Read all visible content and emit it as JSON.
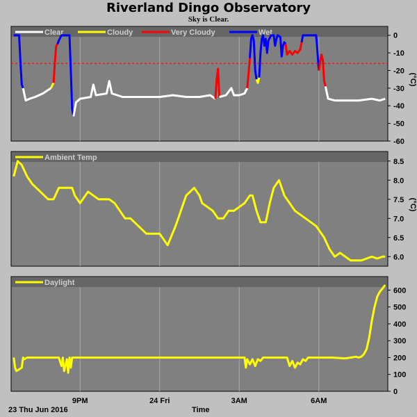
{
  "header": {
    "title": "Riverland Dingo Observatory",
    "subtitle": "Sky is Clear."
  },
  "colors": {
    "background": "#c0c0c0",
    "plot": "#808080",
    "grid": "#a8a8a8",
    "clear": "#ffffff",
    "cloudy": "#ffff00",
    "very_cloudy": "#ff0000",
    "wet": "#0000ff",
    "threshold": "#ff0000",
    "ambient": "#ffff00",
    "daylight": "#ffff00"
  },
  "x_axis": {
    "label": "Time",
    "date_label": "23 Thu Jun 2016",
    "tick_labels": [
      "9PM",
      "24 Fri",
      "3AM",
      "6AM"
    ]
  },
  "chart_data": [
    {
      "type": "line",
      "name": "sky",
      "legend": [
        "Clear",
        "Cloudy",
        "Very Cloudy",
        "Wet"
      ],
      "y_unit": "(°C)",
      "ylim": [
        -60,
        5
      ],
      "y_ticks": [
        0,
        -10,
        -20,
        -30,
        -40,
        -50,
        -60
      ],
      "threshold": -16,
      "xlim": [
        18.4,
        32.6
      ],
      "x_ticks": [
        21,
        24,
        27,
        30
      ],
      "segments": [
        {
          "state": "wet",
          "points": [
            [
              18.5,
              0
            ],
            [
              18.7,
              0
            ],
            [
              18.75,
              -15
            ],
            [
              18.8,
              -28
            ],
            [
              18.85,
              -30
            ]
          ]
        },
        {
          "state": "clear",
          "points": [
            [
              18.85,
              -30
            ],
            [
              18.95,
              -37
            ],
            [
              19.1,
              -36
            ],
            [
              19.3,
              -35
            ],
            [
              19.6,
              -33
            ],
            [
              19.8,
              -31
            ],
            [
              19.9,
              -30
            ]
          ]
        },
        {
          "state": "cloudy",
          "points": [
            [
              19.9,
              -30
            ],
            [
              20.0,
              -27
            ]
          ]
        },
        {
          "state": "very_cloudy",
          "points": [
            [
              20.0,
              -27
            ],
            [
              20.05,
              -15
            ],
            [
              20.1,
              -6
            ],
            [
              20.15,
              -5
            ]
          ]
        },
        {
          "state": "wet",
          "points": [
            [
              20.15,
              -5
            ],
            [
              20.2,
              -3
            ],
            [
              20.3,
              0
            ],
            [
              20.6,
              0
            ],
            [
              20.65,
              -20
            ],
            [
              20.7,
              -42
            ],
            [
              20.75,
              -46
            ]
          ]
        },
        {
          "state": "clear",
          "points": [
            [
              20.75,
              -46
            ],
            [
              20.85,
              -38
            ],
            [
              21.0,
              -36
            ],
            [
              21.4,
              -35
            ],
            [
              21.5,
              -28
            ],
            [
              21.6,
              -34
            ],
            [
              22.0,
              -33
            ],
            [
              22.1,
              -26
            ],
            [
              22.2,
              -33
            ],
            [
              22.6,
              -35
            ],
            [
              23.2,
              -35
            ],
            [
              24.0,
              -35
            ],
            [
              24.5,
              -34
            ],
            [
              25.0,
              -35
            ],
            [
              25.5,
              -35
            ],
            [
              25.9,
              -34
            ],
            [
              26.1,
              -36
            ]
          ]
        },
        {
          "state": "very_cloudy",
          "points": [
            [
              26.1,
              -36
            ],
            [
              26.15,
              -25
            ],
            [
              26.2,
              -19
            ],
            [
              26.25,
              -35
            ]
          ]
        },
        {
          "state": "clear",
          "points": [
            [
              26.25,
              -35
            ],
            [
              26.5,
              -34
            ],
            [
              26.7,
              -30
            ],
            [
              26.8,
              -34
            ],
            [
              27.0,
              -34
            ],
            [
              27.2,
              -33
            ],
            [
              27.3,
              -30
            ]
          ]
        },
        {
          "state": "very_cloudy",
          "points": [
            [
              27.3,
              -30
            ],
            [
              27.35,
              -22
            ],
            [
              27.4,
              -13
            ]
          ]
        },
        {
          "state": "wet",
          "points": [
            [
              27.4,
              -13
            ],
            [
              27.45,
              -2
            ],
            [
              27.5,
              0
            ],
            [
              27.55,
              -3
            ],
            [
              27.6,
              -20
            ],
            [
              27.65,
              -25
            ]
          ]
        },
        {
          "state": "cloudy",
          "points": [
            [
              27.65,
              -25
            ],
            [
              27.7,
              -27
            ],
            [
              27.75,
              -24
            ]
          ]
        },
        {
          "state": "wet",
          "points": [
            [
              27.75,
              -24
            ],
            [
              27.8,
              -10
            ],
            [
              27.85,
              -2
            ],
            [
              27.9,
              0
            ],
            [
              27.95,
              -6
            ],
            [
              28.0,
              -2
            ],
            [
              28.05,
              -10
            ],
            [
              28.1,
              -3
            ],
            [
              28.2,
              0
            ],
            [
              28.3,
              0
            ],
            [
              28.35,
              -6
            ],
            [
              28.4,
              -2
            ],
            [
              28.45,
              0
            ],
            [
              28.55,
              -1
            ],
            [
              28.6,
              -12
            ],
            [
              28.65,
              -6
            ],
            [
              28.7,
              -4
            ],
            [
              28.75,
              -5
            ]
          ]
        },
        {
          "state": "very_cloudy",
          "points": [
            [
              28.75,
              -5
            ],
            [
              28.8,
              -11
            ],
            [
              28.9,
              -9
            ],
            [
              29.0,
              -11
            ],
            [
              29.1,
              -9
            ],
            [
              29.2,
              -10
            ],
            [
              29.3,
              -8
            ],
            [
              29.35,
              -4
            ]
          ]
        },
        {
          "state": "wet",
          "points": [
            [
              29.35,
              -4
            ],
            [
              29.4,
              0
            ],
            [
              29.9,
              0
            ],
            [
              29.95,
              -10
            ],
            [
              30.0,
              -20
            ]
          ]
        },
        {
          "state": "very_cloudy",
          "points": [
            [
              30.0,
              -20
            ],
            [
              30.05,
              -15
            ],
            [
              30.1,
              -11
            ],
            [
              30.15,
              -14
            ],
            [
              30.2,
              -26
            ],
            [
              30.25,
              -29
            ]
          ]
        },
        {
          "state": "clear",
          "points": [
            [
              30.25,
              -29
            ],
            [
              30.35,
              -36
            ],
            [
              30.6,
              -37
            ],
            [
              31.0,
              -37
            ],
            [
              31.5,
              -37
            ],
            [
              32.0,
              -36
            ],
            [
              32.3,
              -37
            ],
            [
              32.5,
              -36
            ]
          ]
        }
      ]
    },
    {
      "type": "line",
      "name": "ambient",
      "legend": [
        "Ambient Temp"
      ],
      "y_unit": "(°C)",
      "ylim": [
        5.75,
        8.75
      ],
      "y_ticks": [
        8.5,
        8.0,
        7.5,
        7.0,
        6.5,
        6.0
      ],
      "xlim": [
        18.4,
        32.6
      ],
      "x_ticks": [
        21,
        24,
        27,
        30
      ],
      "x": [
        18.5,
        18.65,
        18.8,
        19.0,
        19.2,
        19.5,
        19.8,
        20.0,
        20.2,
        20.5,
        20.7,
        20.8,
        21.0,
        21.3,
        21.5,
        21.7,
        21.9,
        22.1,
        22.3,
        22.5,
        22.7,
        22.9,
        23.2,
        23.5,
        23.8,
        24.0,
        24.1,
        24.3,
        24.6,
        25.0,
        25.3,
        25.5,
        25.6,
        25.8,
        26.0,
        26.2,
        26.4,
        26.6,
        26.8,
        27.0,
        27.2,
        27.4,
        27.5,
        27.65,
        27.8,
        28.0,
        28.15,
        28.3,
        28.5,
        28.7,
        28.9,
        29.1,
        29.3,
        29.5,
        29.7,
        29.9,
        30.0,
        30.2,
        30.4,
        30.6,
        30.8,
        31.0,
        31.2,
        31.4,
        31.6,
        31.8,
        32.0,
        32.2,
        32.4,
        32.5
      ],
      "y": [
        8.1,
        8.5,
        8.4,
        8.1,
        7.9,
        7.7,
        7.5,
        7.5,
        7.8,
        7.8,
        7.8,
        7.6,
        7.4,
        7.7,
        7.6,
        7.5,
        7.5,
        7.5,
        7.4,
        7.2,
        7.0,
        7.0,
        6.8,
        6.6,
        6.6,
        6.6,
        6.5,
        6.3,
        6.8,
        7.6,
        7.8,
        7.6,
        7.4,
        7.3,
        7.2,
        7.0,
        7.0,
        7.2,
        7.2,
        7.3,
        7.4,
        7.6,
        7.6,
        7.2,
        6.9,
        6.9,
        7.4,
        7.8,
        8.0,
        7.6,
        7.4,
        7.2,
        7.1,
        7.0,
        6.9,
        6.8,
        6.7,
        6.5,
        6.2,
        6.0,
        6.1,
        6.0,
        5.9,
        5.9,
        5.9,
        5.95,
        6.0,
        5.95,
        6.0,
        6.0
      ]
    },
    {
      "type": "line",
      "name": "daylight",
      "legend": [
        "Daylight"
      ],
      "ylim": [
        0,
        680
      ],
      "y_ticks": [
        600,
        500,
        400,
        300,
        200,
        100,
        0
      ],
      "xlim": [
        18.4,
        32.6
      ],
      "x_ticks": [
        21,
        24,
        27,
        30
      ],
      "x": [
        18.5,
        18.55,
        18.6,
        18.7,
        18.8,
        18.85,
        18.9,
        19.0,
        19.5,
        20.0,
        20.2,
        20.3,
        20.35,
        20.4,
        20.5,
        20.55,
        20.6,
        20.65,
        20.7,
        21.0,
        22.0,
        23.0,
        24.0,
        25.0,
        26.0,
        27.0,
        27.2,
        27.25,
        27.3,
        27.4,
        27.5,
        27.6,
        27.7,
        27.8,
        27.9,
        28.0,
        28.5,
        28.8,
        28.9,
        29.0,
        29.1,
        29.2,
        29.3,
        29.4,
        29.5,
        29.6,
        30.0,
        30.5,
        31.0,
        31.2,
        31.4,
        31.5,
        31.6,
        31.7,
        31.8,
        31.9,
        32.0,
        32.1,
        32.2,
        32.3,
        32.4,
        32.5
      ],
      "y": [
        200,
        140,
        120,
        130,
        140,
        200,
        190,
        200,
        200,
        200,
        200,
        150,
        200,
        120,
        190,
        110,
        200,
        140,
        200,
        200,
        200,
        200,
        200,
        200,
        200,
        200,
        200,
        140,
        190,
        160,
        190,
        150,
        190,
        180,
        200,
        200,
        200,
        200,
        150,
        180,
        140,
        170,
        160,
        190,
        180,
        200,
        200,
        200,
        195,
        200,
        205,
        200,
        205,
        220,
        250,
        320,
        420,
        500,
        560,
        590,
        610,
        630
      ]
    }
  ]
}
